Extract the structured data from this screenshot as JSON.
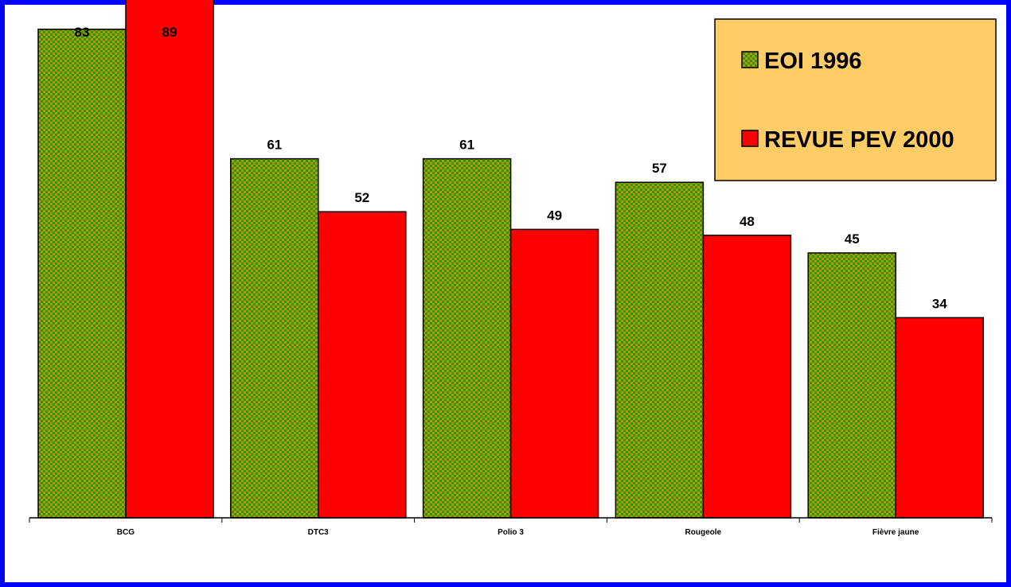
{
  "chart_data": {
    "type": "bar",
    "categories": [
      "BCG",
      "DTC3",
      "Polio 3",
      "Rougeole",
      "Fièvre jaune"
    ],
    "series": [
      {
        "name": "EOI 1996",
        "values": [
          83,
          61,
          61,
          57,
          45
        ],
        "color": "#3f8f00",
        "pattern_color": "#a0a000"
      },
      {
        "name": "REVUE PEV 2000",
        "values": [
          89,
          52,
          49,
          48,
          34
        ],
        "color": "#ff0000"
      }
    ],
    "ylim": [
      0,
      90
    ],
    "grid": false,
    "legend_position": "top-right",
    "legend_background": "#ffcc66",
    "frame_color": "#0000ff"
  }
}
